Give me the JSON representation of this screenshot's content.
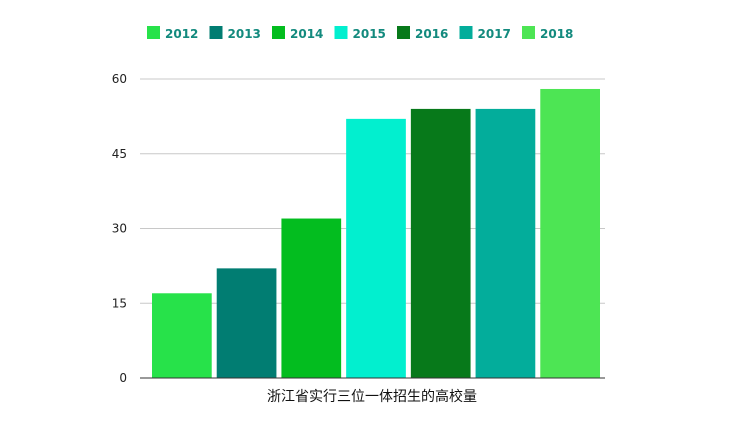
{
  "chart_data": {
    "type": "bar",
    "categories": [
      "2012",
      "2013",
      "2014",
      "2015",
      "2016",
      "2017",
      "2018"
    ],
    "values": [
      17,
      22,
      32,
      52,
      54,
      54,
      58
    ],
    "colors": [
      "#27e24a",
      "#017d72",
      "#03bd1f",
      "#02efcf",
      "#07791a",
      "#03ad9b",
      "#4de554"
    ],
    "xlabel": "浙江省实行三位一体招生的高校量",
    "ylabel": "",
    "ylim": [
      0,
      60
    ],
    "yticks": [
      0,
      15,
      30,
      45,
      60
    ],
    "grid": true,
    "legend_placement": "top"
  }
}
